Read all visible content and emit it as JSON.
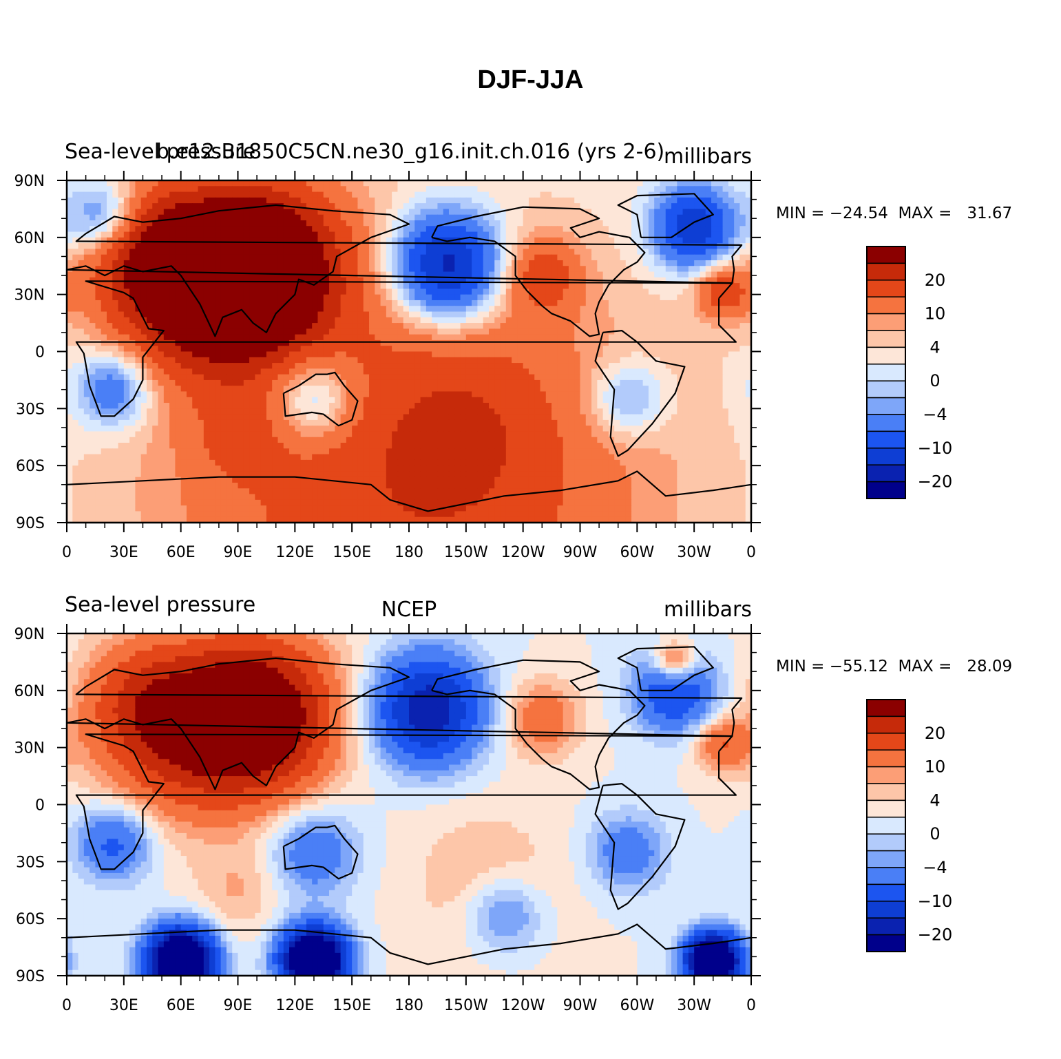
{
  "figure_title": "DJF-JJA",
  "colors": {
    "levels": [
      "#00008b",
      "#0a22b0",
      "#0e3ed4",
      "#1c55f0",
      "#4a7ff6",
      "#7ea6f9",
      "#b2cbfb",
      "#d9e9fe",
      "#fde6d8",
      "#fdc6a9",
      "#fc9e76",
      "#f5733f",
      "#e44719",
      "#c62a0a",
      "#8b0000"
    ],
    "land_outline": "#000000"
  },
  "chart_data": [
    {
      "type": "heatmap",
      "panel": "top",
      "left_label": "Sea-level pressure",
      "center_label": "b.e12.B1850C5CN.ne30_g16.init.ch.016 (yrs 2-6)",
      "right_label": "millibars",
      "stats_text": "MIN = −24.54  MAX =   31.67",
      "min": -24.54,
      "max": 31.67,
      "x_ticks": [
        "0",
        "30E",
        "60E",
        "90E",
        "120E",
        "150E",
        "180",
        "150W",
        "120W",
        "90W",
        "60W",
        "30W",
        "0"
      ],
      "y_ticks": [
        "90N",
        "60N",
        "30N",
        "0",
        "30S",
        "60S",
        "90S"
      ],
      "colorbar_labels": [
        "20",
        "10",
        "4",
        "0",
        "−4",
        "−10",
        "−20"
      ],
      "contour_levels": [
        -25,
        -20,
        -15,
        -10,
        -6,
        -4,
        -2,
        0,
        2,
        4,
        6,
        10,
        15,
        20,
        25
      ],
      "features": [
        {
          "lon": 100,
          "lat": 45,
          "value": 30,
          "spread": 30
        },
        {
          "lon": 70,
          "lat": 30,
          "value": 18,
          "spread": 30
        },
        {
          "lon": 40,
          "lat": 55,
          "value": 14,
          "spread": 25
        },
        {
          "lon": 200,
          "lat": 45,
          "value": -26,
          "spread": 20
        },
        {
          "lon": 250,
          "lat": 40,
          "value": 10,
          "spread": 14
        },
        {
          "lon": 330,
          "lat": 65,
          "value": -20,
          "spread": 15
        },
        {
          "lon": 20,
          "lat": 70,
          "value": -14,
          "spread": 14
        },
        {
          "lon": 345,
          "lat": 32,
          "value": 12,
          "spread": 10
        },
        {
          "lon": 25,
          "lat": -20,
          "value": -12,
          "spread": 14
        },
        {
          "lon": 130,
          "lat": -25,
          "value": -12,
          "spread": 16
        },
        {
          "lon": 295,
          "lat": -25,
          "value": -9,
          "spread": 14
        },
        {
          "lon": 210,
          "lat": -40,
          "value": 5,
          "spread": 30
        },
        {
          "lon": 90,
          "lat": -45,
          "value": 5,
          "spread": 16
        },
        {
          "lon": 180,
          "lat": -78,
          "value": 14,
          "spread": 90
        }
      ]
    },
    {
      "type": "heatmap",
      "panel": "bottom",
      "left_label": "Sea-level pressure",
      "center_label": "NCEP",
      "right_label": "millibars",
      "stats_text": "MIN = −55.12  MAX =   28.09",
      "min": -55.12,
      "max": 28.09,
      "x_ticks": [
        "0",
        "30E",
        "60E",
        "90E",
        "120E",
        "150E",
        "180",
        "150W",
        "120W",
        "90W",
        "60W",
        "30W",
        "0"
      ],
      "y_ticks": [
        "90N",
        "60N",
        "30N",
        "0",
        "30S",
        "60S",
        "90S"
      ],
      "colorbar_labels": [
        "20",
        "10",
        "4",
        "0",
        "−4",
        "−10",
        "−20"
      ],
      "contour_levels": [
        -25,
        -20,
        -15,
        -10,
        -6,
        -4,
        -2,
        0,
        2,
        4,
        6,
        10,
        15,
        20,
        25
      ],
      "features": [
        {
          "lon": 100,
          "lat": 47,
          "value": 28,
          "spread": 28
        },
        {
          "lon": 60,
          "lat": 35,
          "value": 14,
          "spread": 30
        },
        {
          "lon": 40,
          "lat": 55,
          "value": 10,
          "spread": 22
        },
        {
          "lon": 190,
          "lat": 50,
          "value": -24,
          "spread": 20
        },
        {
          "lon": 250,
          "lat": 45,
          "value": 9,
          "spread": 14
        },
        {
          "lon": 320,
          "lat": 60,
          "value": -16,
          "spread": 15
        },
        {
          "lon": 320,
          "lat": 75,
          "value": 14,
          "spread": 8
        },
        {
          "lon": 345,
          "lat": 32,
          "value": 10,
          "spread": 10
        },
        {
          "lon": 25,
          "lat": -20,
          "value": -12,
          "spread": 14
        },
        {
          "lon": 130,
          "lat": -25,
          "value": -10,
          "spread": 16
        },
        {
          "lon": 295,
          "lat": -25,
          "value": -9,
          "spread": 14
        },
        {
          "lon": 220,
          "lat": -40,
          "value": 4,
          "spread": 28
        },
        {
          "lon": 90,
          "lat": -45,
          "value": 4,
          "spread": 16
        },
        {
          "lon": 230,
          "lat": -58,
          "value": -9,
          "spread": 14
        },
        {
          "lon": 60,
          "lat": -82,
          "value": -45,
          "spread": 12
        },
        {
          "lon": 130,
          "lat": -82,
          "value": -45,
          "spread": 12
        },
        {
          "lon": 340,
          "lat": -82,
          "value": -45,
          "spread": 10
        }
      ]
    }
  ]
}
